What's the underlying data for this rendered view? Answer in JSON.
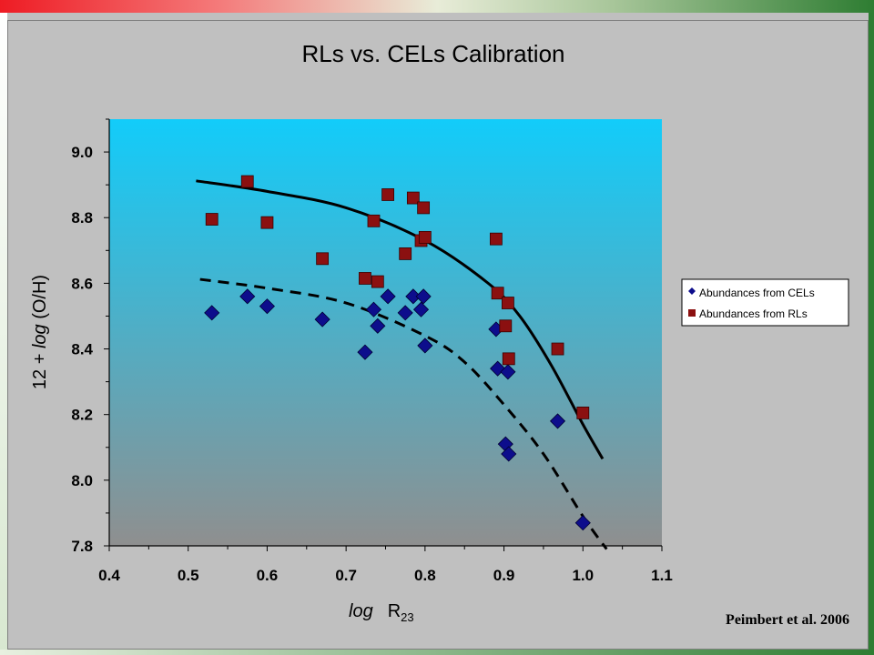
{
  "chart_data": {
    "type": "scatter",
    "title": "RLs vs. CELs Calibration",
    "xlabel_main": "log",
    "xlabel_sub": "R",
    "xlabel_subscript": "23",
    "ylabel_prefix": "12 + ",
    "ylabel_italic": "log",
    "ylabel_suffix": " (O/H)",
    "xlim": [
      0.4,
      1.1
    ],
    "ylim": [
      7.8,
      9.1
    ],
    "xticks": [
      "0.4",
      "0.5",
      "0.6",
      "0.7",
      "0.8",
      "0.9",
      "1.0",
      "1.1"
    ],
    "yticks": [
      "7.8",
      "8.0",
      "8.2",
      "8.4",
      "8.6",
      "8.8",
      "9.0"
    ],
    "legend_position": "right",
    "series": [
      {
        "name": "Abundances from CELs",
        "color": "#0d0d8c",
        "marker": "diamond",
        "points": [
          [
            0.53,
            8.51
          ],
          [
            0.575,
            8.56
          ],
          [
            0.6,
            8.53
          ],
          [
            0.67,
            8.49
          ],
          [
            0.724,
            8.39
          ],
          [
            0.735,
            8.52
          ],
          [
            0.74,
            8.47
          ],
          [
            0.753,
            8.56
          ],
          [
            0.775,
            8.51
          ],
          [
            0.785,
            8.56
          ],
          [
            0.795,
            8.52
          ],
          [
            0.798,
            8.56
          ],
          [
            0.8,
            8.41
          ],
          [
            0.89,
            8.46
          ],
          [
            0.892,
            8.34
          ],
          [
            0.902,
            8.11
          ],
          [
            0.905,
            8.33
          ],
          [
            0.906,
            8.08
          ],
          [
            0.968,
            8.18
          ],
          [
            1.0,
            7.87
          ]
        ]
      },
      {
        "name": "Abundances from RLs",
        "color": "#8b1010",
        "marker": "square",
        "points": [
          [
            0.53,
            8.795
          ],
          [
            0.575,
            8.91
          ],
          [
            0.6,
            8.785
          ],
          [
            0.67,
            8.675
          ],
          [
            0.724,
            8.615
          ],
          [
            0.735,
            8.79
          ],
          [
            0.74,
            8.605
          ],
          [
            0.753,
            8.87
          ],
          [
            0.775,
            8.69
          ],
          [
            0.785,
            8.86
          ],
          [
            0.795,
            8.73
          ],
          [
            0.798,
            8.83
          ],
          [
            0.8,
            8.74
          ],
          [
            0.89,
            8.735
          ],
          [
            0.892,
            8.57
          ],
          [
            0.902,
            8.47
          ],
          [
            0.905,
            8.54
          ],
          [
            0.906,
            8.37
          ],
          [
            0.968,
            8.4
          ],
          [
            1.0,
            8.205
          ]
        ]
      }
    ],
    "fit_curves": [
      {
        "style": "solid",
        "points": [
          [
            0.51,
            8.912
          ],
          [
            0.6,
            8.88
          ],
          [
            0.7,
            8.83
          ],
          [
            0.8,
            8.73
          ],
          [
            0.88,
            8.6
          ],
          [
            0.92,
            8.5
          ],
          [
            0.96,
            8.35
          ],
          [
            1.0,
            8.17
          ],
          [
            1.025,
            8.065
          ]
        ]
      },
      {
        "style": "dashed",
        "points": [
          [
            0.515,
            8.612
          ],
          [
            0.6,
            8.585
          ],
          [
            0.7,
            8.54
          ],
          [
            0.8,
            8.44
          ],
          [
            0.85,
            8.36
          ],
          [
            0.9,
            8.23
          ],
          [
            0.95,
            8.08
          ],
          [
            1.0,
            7.89
          ],
          [
            1.03,
            7.79
          ]
        ]
      }
    ]
  },
  "citation": "Peimbert et al. 2006",
  "colors": {
    "plot_top": "#12ccfa",
    "plot_bottom": "#8f8f8f",
    "panel": "#c0c0c0"
  }
}
